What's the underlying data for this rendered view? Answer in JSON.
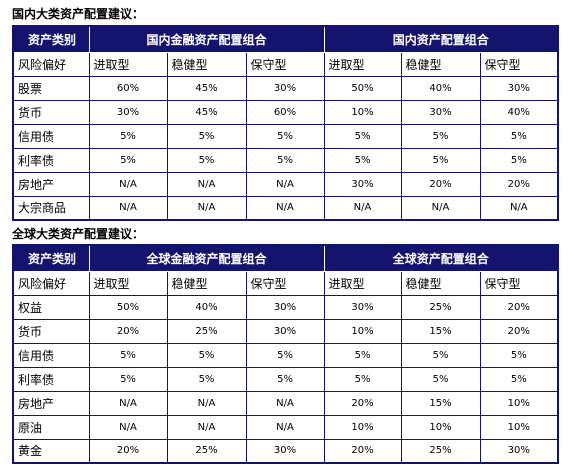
{
  "domestic": {
    "title": "国内大类资产配置建议：",
    "category_header": "资产类别",
    "group1": "国内金融资产配置组合",
    "group2": "国内资产配置组合",
    "risk_label": "风险偏好",
    "profiles": [
      "进取型",
      "稳健型",
      "保守型",
      "进取型",
      "稳健型",
      "保守型"
    ],
    "rows": [
      {
        "asset": "股票",
        "values": [
          "60%",
          "45%",
          "30%",
          "50%",
          "40%",
          "30%"
        ]
      },
      {
        "asset": "货币",
        "values": [
          "30%",
          "45%",
          "60%",
          "10%",
          "30%",
          "40%"
        ]
      },
      {
        "asset": "信用债",
        "values": [
          "5%",
          "5%",
          "5%",
          "5%",
          "5%",
          "5%"
        ]
      },
      {
        "asset": "利率债",
        "values": [
          "5%",
          "5%",
          "5%",
          "5%",
          "5%",
          "5%"
        ]
      },
      {
        "asset": "房地产",
        "values": [
          "N/A",
          "N/A",
          "N/A",
          "30%",
          "20%",
          "20%"
        ]
      },
      {
        "asset": "大宗商品",
        "values": [
          "N/A",
          "N/A",
          "N/A",
          "N/A",
          "N/A",
          "N/A"
        ]
      }
    ]
  },
  "global": {
    "title": "全球大类资产配置建议：",
    "category_header": "资产类别",
    "group1": "全球金融资产配置组合",
    "group2": "全球资产配置组合",
    "risk_label": "风险偏好",
    "profiles": [
      "进取型",
      "稳健型",
      "保守型",
      "进取型",
      "稳健型",
      "保守型"
    ],
    "rows": [
      {
        "asset": "权益",
        "values": [
          "50%",
          "40%",
          "30%",
          "30%",
          "25%",
          "20%"
        ]
      },
      {
        "asset": "货币",
        "values": [
          "20%",
          "25%",
          "30%",
          "10%",
          "15%",
          "20%"
        ]
      },
      {
        "asset": "信用债",
        "values": [
          "5%",
          "5%",
          "5%",
          "5%",
          "5%",
          "5%"
        ]
      },
      {
        "asset": "利率债",
        "values": [
          "5%",
          "5%",
          "5%",
          "5%",
          "5%",
          "5%"
        ]
      },
      {
        "asset": "房地产",
        "values": [
          "N/A",
          "N/A",
          "N/A",
          "20%",
          "15%",
          "10%"
        ]
      },
      {
        "asset": "原油",
        "values": [
          "N/A",
          "N/A",
          "N/A",
          "10%",
          "10%",
          "10%"
        ]
      },
      {
        "asset": "黄金",
        "values": [
          "20%",
          "25%",
          "30%",
          "20%",
          "25%",
          "30%"
        ]
      }
    ]
  },
  "colors": {
    "header_bg": "#14146e",
    "header_text": "#ffffff",
    "border": "#14146e"
  }
}
